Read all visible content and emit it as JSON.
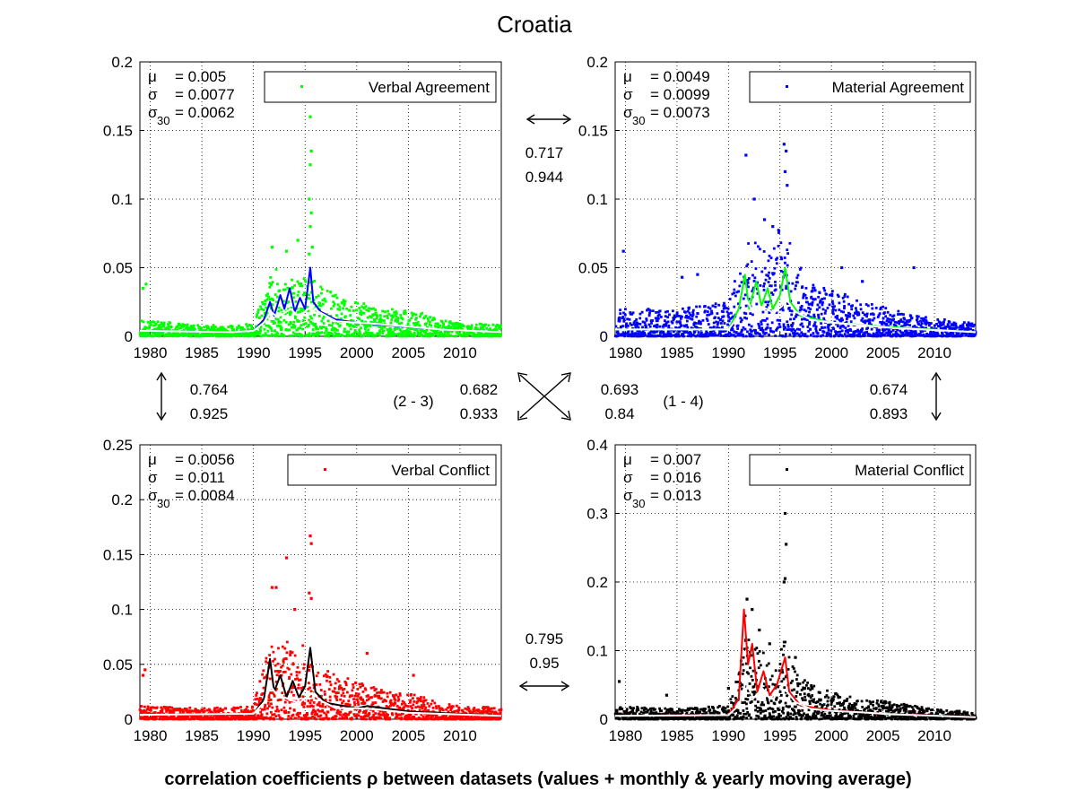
{
  "title": "Croatia",
  "footer": "correlation coefficients ρ between datasets (values + monthly & yearly moving average)",
  "chart_data": [
    {
      "type": "scatter",
      "panel": "top-left",
      "legend": "Verbal Agreement",
      "legend_position": "top-right",
      "color": "#00ff00",
      "monthly_color": "#0000ff",
      "yearly_color": "#ffffff",
      "grid": true,
      "xlim": [
        1979,
        2014
      ],
      "ylim": [
        0,
        0.2
      ],
      "xticks": [
        "1980",
        "1985",
        "1990",
        "1995",
        "2000",
        "2005",
        "2010"
      ],
      "yticks": [
        "0",
        "0.05",
        "0.1",
        "0.15",
        "0.2"
      ],
      "stats": {
        "mu_label": "μ",
        "sigma_label": "σ",
        "sigma30_label": "σ",
        "sigma30_sub": "30",
        "mu": "= 0.005",
        "sigma": "= 0.0077",
        "sigma30": "= 0.0062"
      },
      "envelope": [
        [
          1979,
          0.012
        ],
        [
          1985,
          0.008
        ],
        [
          1990,
          0.009
        ],
        [
          1991,
          0.03
        ],
        [
          1992,
          0.05
        ],
        [
          1993,
          0.045
        ],
        [
          1994,
          0.04
        ],
        [
          1995,
          0.045
        ],
        [
          1996,
          0.04
        ],
        [
          1998,
          0.03
        ],
        [
          2000,
          0.025
        ],
        [
          2003,
          0.02
        ],
        [
          2006,
          0.018
        ],
        [
          2008,
          0.012
        ],
        [
          2014,
          0.008
        ]
      ],
      "spikes": [
        [
          1979.3,
          0.035
        ],
        [
          1979.6,
          0.038
        ],
        [
          1995.5,
          0.16
        ],
        [
          1995.6,
          0.135
        ],
        [
          1995.5,
          0.125
        ],
        [
          1995.4,
          0.1
        ],
        [
          1995.6,
          0.09
        ],
        [
          1995.5,
          0.08
        ],
        [
          1995.7,
          0.065
        ],
        [
          1995.4,
          0.06
        ],
        [
          1994.3,
          0.07
        ],
        [
          1993.2,
          0.062
        ],
        [
          1991.8,
          0.065
        ]
      ],
      "yearly": [
        [
          1979,
          0.004
        ],
        [
          1988,
          0.003
        ],
        [
          1990,
          0.004
        ],
        [
          1991,
          0.01
        ],
        [
          1991.7,
          0.018
        ],
        [
          1992.3,
          0.014
        ],
        [
          1993,
          0.017
        ],
        [
          1993.6,
          0.02
        ],
        [
          1994.3,
          0.015
        ],
        [
          1995,
          0.018
        ],
        [
          1995.6,
          0.022
        ],
        [
          1996.3,
          0.018
        ],
        [
          1998,
          0.011
        ],
        [
          2000,
          0.01
        ],
        [
          2002,
          0.009
        ],
        [
          2005,
          0.007
        ],
        [
          2008,
          0.005
        ],
        [
          2014,
          0.003
        ]
      ],
      "monthly": [
        [
          1979,
          0.004
        ],
        [
          1988,
          0.003
        ],
        [
          1990,
          0.004
        ],
        [
          1991,
          0.012
        ],
        [
          1991.6,
          0.025
        ],
        [
          1992,
          0.015
        ],
        [
          1992.6,
          0.03
        ],
        [
          1993,
          0.02
        ],
        [
          1993.5,
          0.035
        ],
        [
          1994,
          0.018
        ],
        [
          1994.5,
          0.028
        ],
        [
          1995,
          0.02
        ],
        [
          1995.5,
          0.05
        ],
        [
          1995.8,
          0.025
        ],
        [
          1996.5,
          0.018
        ],
        [
          1998,
          0.012
        ],
        [
          2000,
          0.01
        ],
        [
          2003,
          0.008
        ],
        [
          2008,
          0.005
        ],
        [
          2014,
          0.003
        ]
      ]
    },
    {
      "type": "scatter",
      "panel": "top-right",
      "legend": "Material Agreement",
      "legend_position": "top-right",
      "color": "#0000ff",
      "monthly_color": "#00ff00",
      "yearly_color": "#ffffff",
      "grid": true,
      "xlim": [
        1979,
        2014
      ],
      "ylim": [
        0,
        0.2
      ],
      "xticks": [
        "1980",
        "1985",
        "1990",
        "1995",
        "2000",
        "2005",
        "2010"
      ],
      "yticks": [
        "0",
        "0.05",
        "0.1",
        "0.15",
        "0.2"
      ],
      "stats": {
        "mu_label": "μ",
        "sigma_label": "σ",
        "sigma30_label": "σ",
        "sigma30_sub": "30",
        "mu": "= 0.0049",
        "sigma": "= 0.0099",
        "sigma30": "= 0.0073"
      },
      "envelope": [
        [
          1979,
          0.02
        ],
        [
          1985,
          0.02
        ],
        [
          1990,
          0.025
        ],
        [
          1991,
          0.05
        ],
        [
          1992,
          0.07
        ],
        [
          1993,
          0.07
        ],
        [
          1994,
          0.06
        ],
        [
          1995,
          0.09
        ],
        [
          1996,
          0.07
        ],
        [
          1998,
          0.04
        ],
        [
          2000,
          0.035
        ],
        [
          2003,
          0.025
        ],
        [
          2006,
          0.02
        ],
        [
          2008,
          0.015
        ],
        [
          2014,
          0.01
        ]
      ],
      "spikes": [
        [
          1979.8,
          0.062
        ],
        [
          1985.5,
          0.043
        ],
        [
          1987,
          0.045
        ],
        [
          1991.7,
          0.132
        ],
        [
          1995.4,
          0.14
        ],
        [
          1995.6,
          0.135
        ],
        [
          1995.5,
          0.12
        ],
        [
          1995.7,
          0.11
        ],
        [
          1992.5,
          0.1
        ],
        [
          1993.5,
          0.085
        ],
        [
          1994.3,
          0.08
        ],
        [
          2001,
          0.05
        ],
        [
          2008,
          0.05
        ],
        [
          2003,
          0.04
        ]
      ],
      "yearly": [
        [
          1979,
          0.005
        ],
        [
          1990,
          0.005
        ],
        [
          1991,
          0.015
        ],
        [
          1991.7,
          0.027
        ],
        [
          1992.4,
          0.018
        ],
        [
          1993,
          0.022
        ],
        [
          1993.7,
          0.02
        ],
        [
          1994.4,
          0.017
        ],
        [
          1995.2,
          0.022
        ],
        [
          1995.7,
          0.026
        ],
        [
          1996.5,
          0.018
        ],
        [
          1998,
          0.012
        ],
        [
          2000,
          0.01
        ],
        [
          2003,
          0.008
        ],
        [
          2006,
          0.006
        ],
        [
          2014,
          0.003
        ]
      ],
      "monthly": [
        [
          1979,
          0.005
        ],
        [
          1990,
          0.005
        ],
        [
          1991,
          0.02
        ],
        [
          1991.6,
          0.045
        ],
        [
          1992,
          0.02
        ],
        [
          1992.7,
          0.04
        ],
        [
          1993.2,
          0.022
        ],
        [
          1993.8,
          0.035
        ],
        [
          1994.3,
          0.02
        ],
        [
          1995,
          0.03
        ],
        [
          1995.5,
          0.05
        ],
        [
          1996,
          0.025
        ],
        [
          1997,
          0.015
        ],
        [
          2000,
          0.01
        ],
        [
          2005,
          0.007
        ],
        [
          2014,
          0.003
        ]
      ]
    },
    {
      "type": "scatter",
      "panel": "bottom-left",
      "legend": "Verbal Conflict",
      "legend_position": "top-right",
      "color": "#ff0000",
      "monthly_color": "#000000",
      "yearly_color": "#ffffff",
      "grid": true,
      "xlim": [
        1979,
        2014
      ],
      "ylim": [
        0,
        0.25
      ],
      "xticks": [
        "1980",
        "1985",
        "1990",
        "1995",
        "2000",
        "2005",
        "2010"
      ],
      "yticks": [
        "0",
        "0.05",
        "0.1",
        "0.15",
        "0.2",
        "0.25"
      ],
      "stats": {
        "mu_label": "μ",
        "sigma_label": "σ",
        "sigma30_label": "σ",
        "sigma30_sub": "30",
        "mu": "= 0.0056",
        "sigma": "= 0.011",
        "sigma30": "= 0.0084"
      },
      "envelope": [
        [
          1979,
          0.012
        ],
        [
          1985,
          0.01
        ],
        [
          1990,
          0.012
        ],
        [
          1991,
          0.05
        ],
        [
          1992,
          0.08
        ],
        [
          1993,
          0.075
        ],
        [
          1994,
          0.06
        ],
        [
          1995,
          0.07
        ],
        [
          1996,
          0.05
        ],
        [
          1998,
          0.04
        ],
        [
          2000,
          0.035
        ],
        [
          2003,
          0.025
        ],
        [
          2006,
          0.022
        ],
        [
          2008,
          0.015
        ],
        [
          2014,
          0.01
        ]
      ],
      "spikes": [
        [
          1979.5,
          0.045
        ],
        [
          1979.3,
          0.04
        ],
        [
          1995.5,
          0.167
        ],
        [
          1995.6,
          0.16
        ],
        [
          1993.2,
          0.147
        ],
        [
          1991.8,
          0.12
        ],
        [
          1992.2,
          0.12
        ],
        [
          1995.4,
          0.115
        ],
        [
          1994,
          0.1
        ],
        [
          1995.6,
          0.11
        ],
        [
          2001,
          0.06
        ],
        [
          2005.5,
          0.04
        ]
      ],
      "yearly": [
        [
          1979,
          0.004
        ],
        [
          1990,
          0.005
        ],
        [
          1991,
          0.015
        ],
        [
          1991.7,
          0.03
        ],
        [
          1992.4,
          0.02
        ],
        [
          1993,
          0.02
        ],
        [
          1993.7,
          0.017
        ],
        [
          1994.4,
          0.015
        ],
        [
          1995.2,
          0.02
        ],
        [
          1995.7,
          0.024
        ],
        [
          1996.5,
          0.017
        ],
        [
          1998,
          0.01
        ],
        [
          2000,
          0.01
        ],
        [
          2002,
          0.009
        ],
        [
          2005,
          0.006
        ],
        [
          2014,
          0.003
        ]
      ],
      "monthly": [
        [
          1979,
          0.004
        ],
        [
          1990,
          0.005
        ],
        [
          1991,
          0.018
        ],
        [
          1991.6,
          0.055
        ],
        [
          1992,
          0.025
        ],
        [
          1992.6,
          0.04
        ],
        [
          1993.2,
          0.02
        ],
        [
          1993.8,
          0.035
        ],
        [
          1994.4,
          0.02
        ],
        [
          1995,
          0.03
        ],
        [
          1995.5,
          0.065
        ],
        [
          1996,
          0.025
        ],
        [
          1997,
          0.015
        ],
        [
          2000,
          0.01
        ],
        [
          2001,
          0.012
        ],
        [
          2005,
          0.007
        ],
        [
          2014,
          0.003
        ]
      ]
    },
    {
      "type": "scatter",
      "panel": "bottom-right",
      "legend": "Material Conflict",
      "legend_position": "top-right",
      "color": "#000000",
      "monthly_color": "#ff0000",
      "yearly_color": "#ffffff",
      "grid": true,
      "xlim": [
        1979,
        2014
      ],
      "ylim": [
        0,
        0.4
      ],
      "xticks": [
        "1980",
        "1985",
        "1990",
        "1995",
        "2000",
        "2005",
        "2010"
      ],
      "yticks": [
        "0",
        "0.1",
        "0.2",
        "0.3",
        "0.4"
      ],
      "stats": {
        "mu_label": "μ",
        "sigma_label": "σ",
        "sigma30_label": "σ",
        "sigma30_sub": "30",
        "mu": "= 0.007",
        "sigma": "= 0.016",
        "sigma30": "= 0.013"
      },
      "envelope": [
        [
          1979,
          0.02
        ],
        [
          1985,
          0.015
        ],
        [
          1990,
          0.02
        ],
        [
          1991,
          0.08
        ],
        [
          1991.7,
          0.17
        ],
        [
          1992.5,
          0.12
        ],
        [
          1993.5,
          0.1
        ],
        [
          1994.5,
          0.07
        ],
        [
          1995.5,
          0.12
        ],
        [
          1996.5,
          0.07
        ],
        [
          1998,
          0.05
        ],
        [
          2000,
          0.04
        ],
        [
          2003,
          0.03
        ],
        [
          2006,
          0.025
        ],
        [
          2010,
          0.015
        ],
        [
          2014,
          0.01
        ]
      ],
      "spikes": [
        [
          1979.4,
          0.055
        ],
        [
          1995.5,
          0.3
        ],
        [
          1995.6,
          0.255
        ],
        [
          1995.5,
          0.205
        ],
        [
          1995.4,
          0.2
        ],
        [
          1991.8,
          0.175
        ],
        [
          1992.3,
          0.16
        ],
        [
          1993,
          0.13
        ],
        [
          1994,
          0.11
        ],
        [
          1996.5,
          0.09
        ],
        [
          1990,
          0.045
        ],
        [
          1984,
          0.035
        ]
      ],
      "yearly": [
        [
          1979,
          0.005
        ],
        [
          1990,
          0.006
        ],
        [
          1991,
          0.02
        ],
        [
          1991.7,
          0.055
        ],
        [
          1992.4,
          0.03
        ],
        [
          1993.3,
          0.045
        ],
        [
          1994,
          0.03
        ],
        [
          1995,
          0.045
        ],
        [
          1995.7,
          0.04
        ],
        [
          1996.5,
          0.025
        ],
        [
          1998,
          0.015
        ],
        [
          2000,
          0.012
        ],
        [
          2003,
          0.01
        ],
        [
          2006,
          0.007
        ],
        [
          2014,
          0.003
        ]
      ],
      "monthly": [
        [
          1979,
          0.005
        ],
        [
          1990,
          0.006
        ],
        [
          1991,
          0.03
        ],
        [
          1991.5,
          0.16
        ],
        [
          1991.9,
          0.08
        ],
        [
          1992.3,
          0.11
        ],
        [
          1992.8,
          0.04
        ],
        [
          1993.4,
          0.07
        ],
        [
          1994,
          0.035
        ],
        [
          1994.7,
          0.05
        ],
        [
          1995.5,
          0.09
        ],
        [
          1995.9,
          0.04
        ],
        [
          1997,
          0.02
        ],
        [
          2000,
          0.013
        ],
        [
          2005,
          0.008
        ],
        [
          2014,
          0.003
        ]
      ]
    }
  ],
  "correlations": {
    "top": {
      "value1": "0.717",
      "value2": "0.944"
    },
    "bottom": {
      "value1": "0.795",
      "value2": "0.95"
    },
    "left": {
      "value1": "0.764",
      "value2": "0.925"
    },
    "right": {
      "value1": "0.674",
      "value2": "0.893"
    },
    "diag_23": {
      "label": "(2 - 3)",
      "value1": "0.682",
      "value2": "0.933"
    },
    "diag_14": {
      "label": "(1 - 4)",
      "value1": "0.693",
      "value2": "0.84"
    }
  }
}
